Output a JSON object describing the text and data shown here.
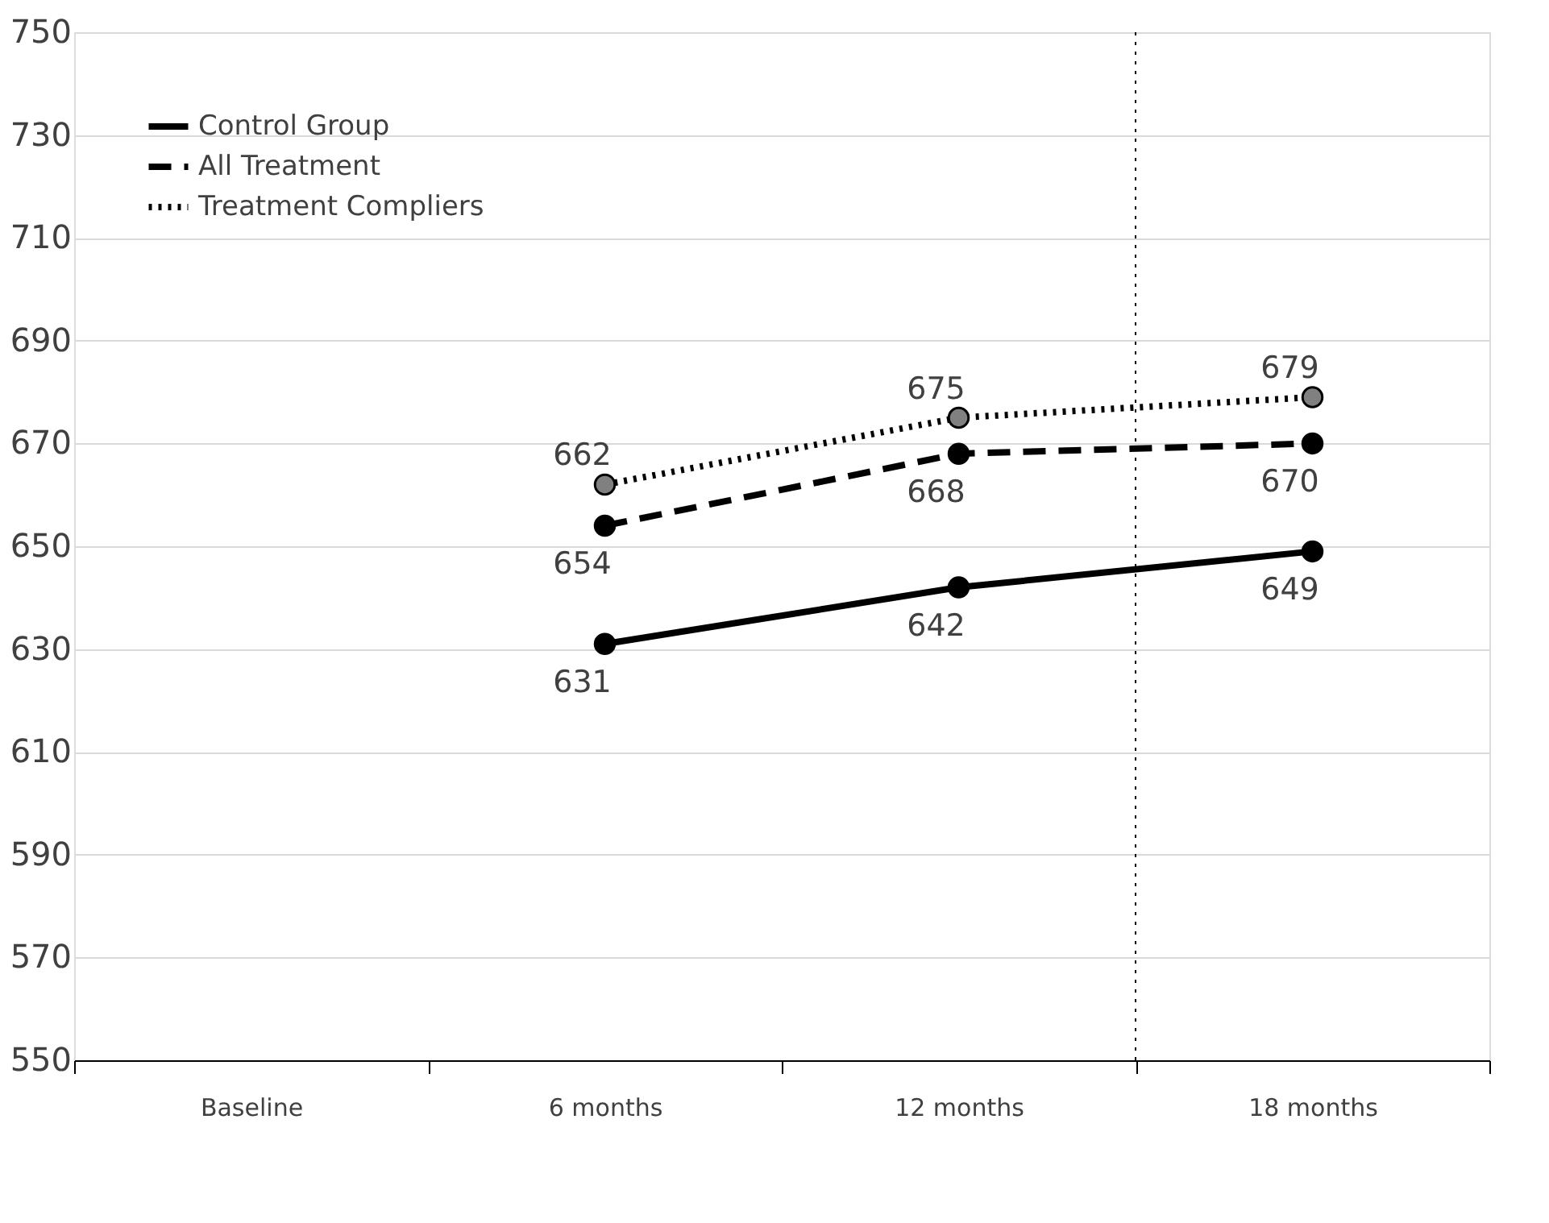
{
  "chart_data": {
    "type": "line",
    "categories": [
      "Baseline",
      "6 months",
      "12 months",
      "18 months"
    ],
    "series": [
      {
        "name": "Control Group",
        "color": "#000000",
        "line_style": "solid",
        "values": [
          null,
          631,
          642,
          649
        ]
      },
      {
        "name": "All Treatment",
        "color": "#000000",
        "line_style": "dashed",
        "values": [
          null,
          654,
          668,
          670
        ]
      },
      {
        "name": "Treatment Compliers",
        "color": "#000000",
        "line_style": "dotted",
        "values": [
          null,
          662,
          675,
          679
        ]
      }
    ],
    "ylim": [
      550,
      750
    ],
    "yticks": [
      550,
      570,
      590,
      610,
      630,
      650,
      670,
      690,
      710,
      730,
      750
    ],
    "grid": "y",
    "legend": "top left",
    "marker": "circle",
    "data_labels": true,
    "ref_lines": [
      {
        "axis": "x",
        "value": "18 months",
        "line_style": "dotted",
        "color": "#000000"
      }
    ]
  }
}
